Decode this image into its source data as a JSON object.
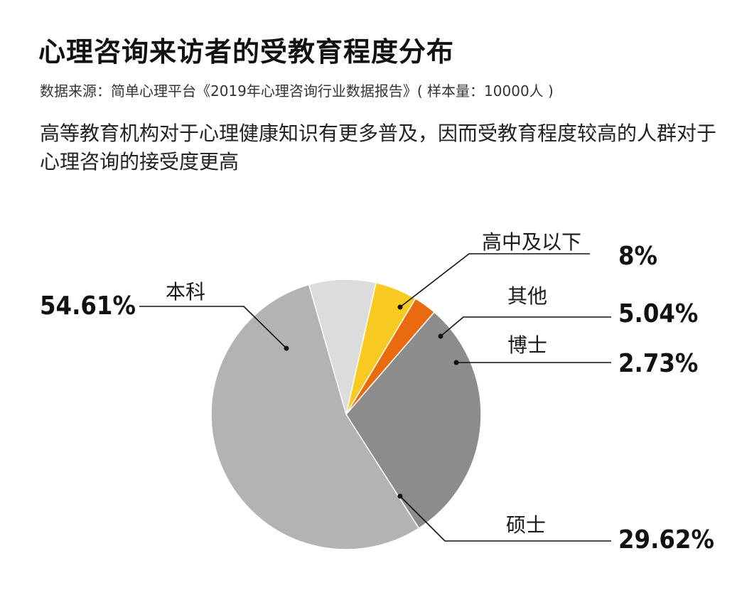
{
  "header": {
    "title": "心理咨询来访者的受教育程度分布",
    "source": "数据来源：简单心理平台《2019年心理咨询行业数据报告》( 样本量：10000人 )",
    "subtitle": "高等教育机构对于心理健康知识有更多普及，因而受教育程度较高的人群对于心理咨询的接受度更高"
  },
  "chart_data": {
    "type": "pie",
    "title": "心理咨询来访者的受教育程度分布",
    "unit": "%",
    "slices": [
      {
        "label": "高中及以下",
        "value": 8,
        "display": "8%",
        "color": "#dcdcdc"
      },
      {
        "label": "其他",
        "value": 5.04,
        "display": "5.04%",
        "color": "#f9cb22"
      },
      {
        "label": "博士",
        "value": 2.73,
        "display": "2.73%",
        "color": "#ea6a0e"
      },
      {
        "label": "硕士",
        "value": 29.62,
        "display": "29.62%",
        "color": "#8c8c8c"
      },
      {
        "label": "本科",
        "value": 54.61,
        "display": "54.61%",
        "color": "#b3b3b3"
      }
    ]
  }
}
